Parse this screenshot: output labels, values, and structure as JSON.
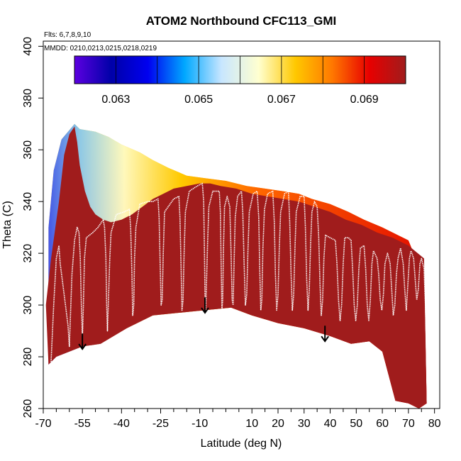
{
  "chart_data": {
    "type": "heatmap",
    "title": "ATOM2 Northbound CFC113_GMI",
    "flights_note": "Flts: 6,7,8,9,10",
    "dates_note": "MMDD: 0210,0213,0215,0218,0219",
    "xlabel": "Latitude (deg N)",
    "ylabel": "Theta (C)",
    "xlim": [
      -70,
      82
    ],
    "ylim": [
      260,
      402
    ],
    "x_tick_labels": [
      "-70",
      "-55",
      "-40",
      "-25",
      "-10",
      "10",
      "20",
      "30",
      "40",
      "50",
      "60",
      "70",
      "80"
    ],
    "x_tick_values": [
      -70,
      -55,
      -40,
      -25,
      -10,
      10,
      20,
      30,
      40,
      50,
      60,
      70,
      80
    ],
    "x_minor_ticks": [
      -65,
      -60,
      -50,
      -45,
      -35,
      -30,
      -20,
      -15,
      -5,
      0,
      5,
      15,
      25,
      35,
      45,
      55,
      65,
      75
    ],
    "y_tick_labels": [
      "260",
      "280",
      "300",
      "320",
      "340",
      "360",
      "380",
      "400"
    ],
    "y_tick_values": [
      260,
      280,
      300,
      320,
      340,
      360,
      380,
      400
    ],
    "colorbar": {
      "range": [
        0.062,
        0.07
      ],
      "tick_labels": [
        "0.063",
        "0.065",
        "0.067",
        "0.069"
      ],
      "tick_values": [
        0.063,
        0.065,
        0.067,
        0.069
      ],
      "divisions": [
        0.062,
        0.063,
        0.064,
        0.065,
        0.066,
        0.067,
        0.068,
        0.069,
        0.07
      ],
      "colors": [
        "#5c00e0",
        "#0000a8",
        "#0000f0",
        "#00a8ff",
        "#c8e6ff",
        "#ffffd0",
        "#ffc800",
        "#ff7800",
        "#e80000",
        "#a01c1c"
      ]
    },
    "upper_boundary": [
      [
        -68,
        330
      ],
      [
        -66,
        352
      ],
      [
        -63,
        364
      ],
      [
        -58,
        370
      ],
      [
        -56,
        368
      ],
      [
        -50,
        367
      ],
      [
        -45,
        365
      ],
      [
        -40,
        362
      ],
      [
        -33,
        359
      ],
      [
        -28,
        356
      ],
      [
        -22,
        353
      ],
      [
        -15,
        350
      ],
      [
        -8,
        349
      ],
      [
        0,
        348
      ],
      [
        8,
        346
      ],
      [
        15,
        345
      ],
      [
        22,
        344
      ],
      [
        28,
        343
      ],
      [
        33,
        341
      ],
      [
        40,
        339
      ],
      [
        47,
        336
      ],
      [
        53,
        333
      ],
      [
        60,
        330
      ],
      [
        66,
        327
      ],
      [
        70,
        325
      ],
      [
        72,
        320
      ],
      [
        74,
        317
      ],
      [
        76,
        312
      ]
    ],
    "lower_boundary": [
      [
        -68,
        277
      ],
      [
        -65,
        280
      ],
      [
        -60,
        282
      ],
      [
        -55,
        284
      ],
      [
        -48,
        285
      ],
      [
        -38,
        291
      ],
      [
        -28,
        296
      ],
      [
        -18,
        297
      ],
      [
        -8,
        298
      ],
      [
        2,
        299
      ],
      [
        10,
        296
      ],
      [
        20,
        293
      ],
      [
        30,
        291
      ],
      [
        40,
        288
      ],
      [
        48,
        285
      ],
      [
        55,
        286
      ],
      [
        60,
        282
      ],
      [
        65,
        263
      ],
      [
        70,
        262
      ],
      [
        74,
        260
      ],
      [
        77,
        262
      ]
    ],
    "low_tracer_profile": [
      [
        -69,
        300
      ],
      [
        -67,
        318
      ],
      [
        -64,
        340
      ],
      [
        -62,
        358
      ],
      [
        -60,
        366
      ],
      [
        -58,
        369
      ],
      [
        -57,
        363
      ],
      [
        -56,
        354
      ],
      [
        -54,
        344
      ],
      [
        -52,
        338
      ],
      [
        -50,
        335
      ],
      [
        -47,
        333
      ],
      [
        -44,
        332
      ],
      [
        -40,
        333
      ],
      [
        -36,
        335
      ],
      [
        -32,
        338
      ],
      [
        -28,
        341
      ],
      [
        -24,
        343
      ],
      [
        -20,
        345
      ],
      [
        -15,
        346
      ],
      [
        -10,
        347
      ],
      [
        -6,
        347
      ],
      [
        -2,
        346
      ],
      [
        4,
        345
      ],
      [
        10,
        343
      ],
      [
        16,
        342
      ],
      [
        22,
        341
      ],
      [
        28,
        340
      ],
      [
        34,
        338
      ],
      [
        40,
        336
      ],
      [
        46,
        333
      ],
      [
        52,
        331
      ],
      [
        58,
        328
      ],
      [
        64,
        326
      ],
      [
        70,
        323
      ],
      [
        76,
        318
      ]
    ],
    "flight_path": [
      [
        -67,
        278
      ],
      [
        -66,
        300
      ],
      [
        -65,
        318
      ],
      [
        -64,
        323
      ],
      [
        -63.5,
        316
      ],
      [
        -62.5,
        308
      ],
      [
        -61.5,
        300
      ],
      [
        -60.5,
        292
      ],
      [
        -60,
        284
      ],
      [
        -59.5,
        298
      ],
      [
        -59,
        312
      ],
      [
        -58,
        325
      ],
      [
        -57,
        330
      ],
      [
        -56.3,
        328
      ],
      [
        -55.8,
        318
      ],
      [
        -55.4,
        300
      ],
      [
        -55,
        288
      ],
      [
        -54.6,
        300
      ],
      [
        -54.2,
        318
      ],
      [
        -53.5,
        326
      ],
      [
        -51,
        328
      ],
      [
        -49,
        330
      ],
      [
        -47,
        333
      ],
      [
        -46.5,
        330
      ],
      [
        -46,
        318
      ],
      [
        -45.7,
        300
      ],
      [
        -45.4,
        290
      ],
      [
        -45,
        302
      ],
      [
        -44.5,
        318
      ],
      [
        -44,
        328
      ],
      [
        -42,
        335
      ],
      [
        -39,
        336
      ],
      [
        -37,
        337
      ],
      [
        -36.5,
        330
      ],
      [
        -36,
        312
      ],
      [
        -35.7,
        296
      ],
      [
        -35.3,
        300
      ],
      [
        -35,
        318
      ],
      [
        -34.5,
        330
      ],
      [
        -33,
        339
      ],
      [
        -30,
        340
      ],
      [
        -28,
        340
      ],
      [
        -26,
        341
      ],
      [
        -25.6,
        334
      ],
      [
        -25.2,
        316
      ],
      [
        -24.8,
        300
      ],
      [
        -24.4,
        302
      ],
      [
        -24,
        320
      ],
      [
        -23.5,
        336
      ],
      [
        -20,
        341
      ],
      [
        -18,
        342
      ],
      [
        -17.6,
        334
      ],
      [
        -17.2,
        316
      ],
      [
        -16.8,
        298
      ],
      [
        -16.4,
        302
      ],
      [
        -16,
        320
      ],
      [
        -15.5,
        336
      ],
      [
        -14,
        344
      ],
      [
        -11,
        346
      ],
      [
        -9,
        347
      ],
      [
        -8.5,
        340
      ],
      [
        -8.2,
        320
      ],
      [
        -8,
        305
      ],
      [
        -7.8,
        296
      ],
      [
        -7.5,
        306
      ],
      [
        -7,
        324
      ],
      [
        -6.5,
        338
      ],
      [
        -5,
        344
      ],
      [
        -2.5,
        344
      ],
      [
        -2.1,
        336
      ],
      [
        -1.8,
        316
      ],
      [
        -1.5,
        298
      ],
      [
        -1.2,
        302
      ],
      [
        -0.9,
        322
      ],
      [
        -0.5,
        338
      ],
      [
        0.5,
        342
      ],
      [
        1.5,
        338
      ],
      [
        2,
        320
      ],
      [
        2.4,
        302
      ],
      [
        2.8,
        300
      ],
      [
        3.2,
        318
      ],
      [
        3.6,
        334
      ],
      [
        4.5,
        342
      ],
      [
        6,
        344
      ],
      [
        6.5,
        336
      ],
      [
        7,
        316
      ],
      [
        7.5,
        300
      ],
      [
        8,
        304
      ],
      [
        8.5,
        322
      ],
      [
        9,
        336
      ],
      [
        10.5,
        343
      ],
      [
        12,
        344
      ],
      [
        12.6,
        334
      ],
      [
        13,
        314
      ],
      [
        13.4,
        298
      ],
      [
        13.8,
        302
      ],
      [
        14.2,
        322
      ],
      [
        14.8,
        337
      ],
      [
        16,
        343
      ],
      [
        18,
        344
      ],
      [
        18.6,
        332
      ],
      [
        19,
        312
      ],
      [
        19.5,
        298
      ],
      [
        20,
        304
      ],
      [
        20.5,
        322
      ],
      [
        21,
        336
      ],
      [
        22.5,
        343
      ],
      [
        24,
        344
      ],
      [
        24.5,
        332
      ],
      [
        25,
        312
      ],
      [
        25.5,
        298
      ],
      [
        26,
        304
      ],
      [
        26.5,
        322
      ],
      [
        27,
        336
      ],
      [
        28.5,
        342
      ],
      [
        30,
        342
      ],
      [
        30.5,
        330
      ],
      [
        31,
        310
      ],
      [
        31.5,
        298
      ],
      [
        32,
        306
      ],
      [
        32.5,
        324
      ],
      [
        33,
        336
      ],
      [
        34,
        340
      ],
      [
        35,
        338
      ],
      [
        35.6,
        326
      ],
      [
        36.1,
        308
      ],
      [
        36.6,
        296
      ],
      [
        37.1,
        302
      ],
      [
        37.6,
        318
      ],
      [
        38.2,
        327
      ],
      [
        40,
        326
      ],
      [
        42,
        325
      ],
      [
        42.6,
        316
      ],
      [
        43.2,
        302
      ],
      [
        43.8,
        294
      ],
      [
        44.4,
        300
      ],
      [
        45,
        316
      ],
      [
        45.6,
        326
      ],
      [
        47,
        326
      ],
      [
        48,
        325
      ],
      [
        48.6,
        314
      ],
      [
        49.2,
        300
      ],
      [
        49.8,
        294
      ],
      [
        50.4,
        300
      ],
      [
        51,
        314
      ],
      [
        51.6,
        322
      ],
      [
        53,
        323
      ],
      [
        53.6,
        314
      ],
      [
        54.2,
        300
      ],
      [
        54.8,
        294
      ],
      [
        55.4,
        302
      ],
      [
        56,
        316
      ],
      [
        56.6,
        321
      ],
      [
        58,
        318
      ],
      [
        58.6,
        312
      ],
      [
        59.2,
        302
      ],
      [
        59.8,
        298
      ],
      [
        60.4,
        304
      ],
      [
        61,
        316
      ],
      [
        62,
        320
      ],
      [
        63,
        316
      ],
      [
        63.6,
        306
      ],
      [
        64.2,
        296
      ],
      [
        64.8,
        300
      ],
      [
        65.4,
        312
      ],
      [
        66,
        318
      ],
      [
        67,
        322
      ],
      [
        68,
        316
      ],
      [
        68.6,
        306
      ],
      [
        69.2,
        298
      ],
      [
        69.8,
        308
      ],
      [
        70.4,
        318
      ],
      [
        71,
        321
      ],
      [
        72,
        318
      ],
      [
        72.6,
        310
      ],
      [
        73.2,
        302
      ],
      [
        73.8,
        306
      ],
      [
        74.4,
        316
      ],
      [
        75,
        318
      ],
      [
        76,
        314
      ],
      [
        76.5,
        300
      ],
      [
        77,
        280
      ],
      [
        77.5,
        264
      ]
    ],
    "arrows": [
      {
        "x": -55,
        "y_start": 289,
        "y_end": 283
      },
      {
        "x": -8,
        "y_start": 303,
        "y_end": 297
      },
      {
        "x": 38,
        "y_start": 292,
        "y_end": 286
      }
    ]
  },
  "colors": {
    "background": "#ffffff",
    "fill_dark": "#a01c1c",
    "flight_path": "#ffffff",
    "arrow": "#000000"
  }
}
